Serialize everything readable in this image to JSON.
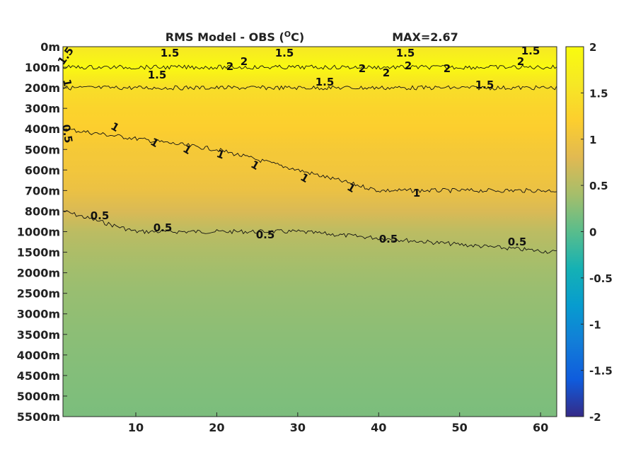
{
  "chart_data": {
    "type": "heatmap",
    "title": "RMS Model - OBS",
    "title_unit_prefix": "(",
    "title_unit_super": "O",
    "title_unit_suffix": "C)",
    "max_label": "MAX=2.67",
    "xlabel": "",
    "ylabel": "",
    "x_ticks": [
      10,
      20,
      30,
      40,
      50,
      60
    ],
    "xlim": [
      1,
      62
    ],
    "y_ticks": [
      "0m",
      "100m",
      "200m",
      "300m",
      "400m",
      "500m",
      "600m",
      "700m",
      "800m",
      "1000m",
      "1500m",
      "2000m",
      "2500m",
      "3000m",
      "3500m",
      "4000m",
      "4500m",
      "5000m",
      "5500m"
    ],
    "colorbar": {
      "range": [
        -2,
        2
      ],
      "ticks": [
        "2",
        "1.5",
        "1",
        "0.5",
        "0",
        "-0.5",
        "-1",
        "-1.5",
        "-2"
      ],
      "colormap": "parula"
    },
    "depth_profile": [
      {
        "depth": "0m",
        "value": 1.6
      },
      {
        "depth": "100m",
        "value": 1.95
      },
      {
        "depth": "200m",
        "value": 1.45
      },
      {
        "depth": "300m",
        "value": 1.3
      },
      {
        "depth": "400m",
        "value": 1.2
      },
      {
        "depth": "500m",
        "value": 1.1
      },
      {
        "depth": "600m",
        "value": 1.05
      },
      {
        "depth": "700m",
        "value": 0.95
      },
      {
        "depth": "800m",
        "value": 0.75
      },
      {
        "depth": "1000m",
        "value": 0.55
      },
      {
        "depth": "1500m",
        "value": 0.45
      },
      {
        "depth": "2000m",
        "value": 0.38
      },
      {
        "depth": "2500m",
        "value": 0.33
      },
      {
        "depth": "3000m",
        "value": 0.3
      },
      {
        "depth": "3500m",
        "value": 0.27
      },
      {
        "depth": "4000m",
        "value": 0.24
      },
      {
        "depth": "4500m",
        "value": 0.22
      },
      {
        "depth": "5000m",
        "value": 0.2
      },
      {
        "depth": "5500m",
        "value": 0.18
      }
    ],
    "contours": [
      {
        "level": "0.5",
        "depth_at_x": [
          [
            1,
            "800m"
          ],
          [
            10,
            "1000m"
          ],
          [
            30,
            "1000m"
          ],
          [
            62,
            "1500m"
          ]
        ]
      },
      {
        "level": "1",
        "depth_at_x": [
          [
            1,
            "400m"
          ],
          [
            20,
            "500m"
          ],
          [
            40,
            "700m"
          ],
          [
            62,
            "700m"
          ]
        ]
      },
      {
        "level": "1.5",
        "depth_at_x": [
          [
            1,
            "200m"
          ],
          [
            30,
            "200m"
          ],
          [
            62,
            "200m"
          ]
        ]
      },
      {
        "level": "2",
        "depth_at_x": [
          [
            1,
            "100m"
          ],
          [
            30,
            "100m"
          ],
          [
            62,
            "100m"
          ]
        ]
      }
    ],
    "contour_labels": [
      "1.5",
      "1.5",
      "1.5",
      "1.5",
      "1.5",
      "2",
      "2",
      "2",
      "2",
      "2",
      "2",
      "2",
      "1.5",
      "1.5",
      "1.5",
      "1",
      "0.5",
      "1",
      "1",
      "1",
      "1",
      "1",
      "1",
      "1",
      "1",
      "0.5",
      "0.5",
      "0.5",
      "0.5",
      "0.5"
    ]
  }
}
